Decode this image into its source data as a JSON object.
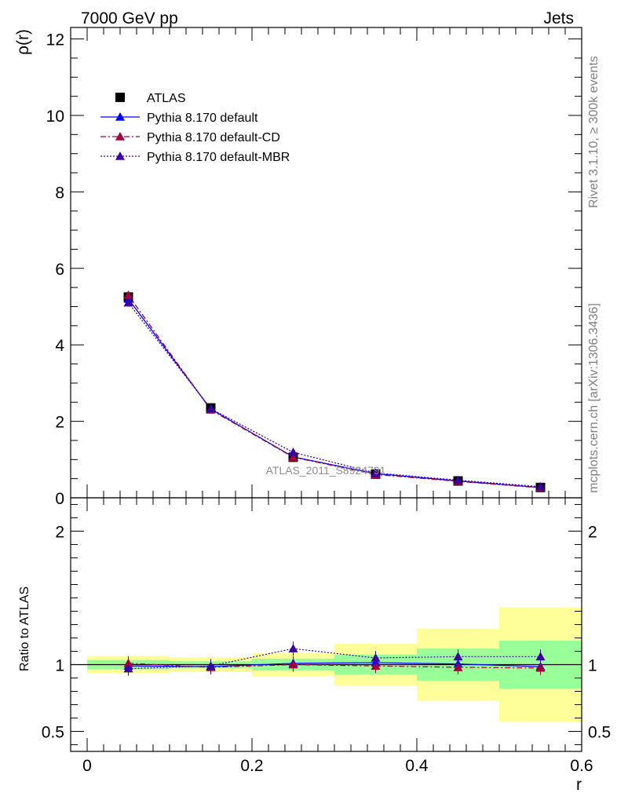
{
  "header": {
    "left": "7000 GeV pp",
    "right": "Jets"
  },
  "side_labels": {
    "rivet": "Rivet 3.1.10, ≥ 300k events",
    "mcplots": "mcplots.cern.ch [arXiv:1306.3436]"
  },
  "watermark": "ATLAS_2011_S8924791",
  "colors": {
    "data": "#000000",
    "default": "#0000ff",
    "cd": "#a0003c",
    "mbr": "#3c00a0",
    "band_inner": "#99ff99",
    "band_outer": "#ffff99"
  },
  "chart_data": [
    {
      "type": "line",
      "ylabel": "ρ(r)",
      "xlim": [
        -0.02,
        0.6
      ],
      "ylim": [
        0,
        12.3
      ],
      "yticks": [
        0,
        2,
        4,
        6,
        8,
        10,
        12
      ],
      "x": [
        0.05,
        0.15,
        0.25,
        0.35,
        0.45,
        0.55
      ],
      "data": {
        "name": "ATLAS",
        "values": [
          5.25,
          2.35,
          1.06,
          0.62,
          0.44,
          0.27
        ]
      },
      "series": [
        {
          "name": "Pythia 8.170 default",
          "values": [
            5.2,
            2.32,
            1.07,
            0.63,
            0.44,
            0.27
          ]
        },
        {
          "name": "Pythia 8.170 default-CD",
          "values": [
            5.3,
            2.3,
            1.06,
            0.61,
            0.43,
            0.26
          ]
        },
        {
          "name": "Pythia 8.170 default-MBR",
          "values": [
            5.1,
            2.33,
            1.19,
            0.65,
            0.46,
            0.29
          ]
        }
      ],
      "legend": "top-left"
    },
    {
      "type": "line",
      "ylabel": "Ratio to ATLAS",
      "xlabel": "r",
      "xlim": [
        -0.02,
        0.6
      ],
      "ylim": [
        0.35,
        2.25
      ],
      "yticks": [
        0.5,
        1,
        2
      ],
      "xticks": [
        0,
        0.2,
        0.4,
        0.6
      ],
      "bins": [
        [
          0.0,
          0.1
        ],
        [
          0.1,
          0.2
        ],
        [
          0.2,
          0.3
        ],
        [
          0.3,
          0.4
        ],
        [
          0.4,
          0.5
        ],
        [
          0.5,
          0.6
        ]
      ],
      "band_inner": [
        [
          0.965,
          1.035
        ],
        [
          0.975,
          1.025
        ],
        [
          0.955,
          1.045
        ],
        [
          0.925,
          1.075
        ],
        [
          0.88,
          1.12
        ],
        [
          0.82,
          1.18
        ]
      ],
      "band_outer": [
        [
          0.935,
          1.065
        ],
        [
          0.945,
          1.055
        ],
        [
          0.915,
          1.085
        ],
        [
          0.845,
          1.155
        ],
        [
          0.73,
          1.27
        ],
        [
          0.57,
          1.43
        ]
      ],
      "x": [
        0.05,
        0.15,
        0.25,
        0.35,
        0.45,
        0.55
      ],
      "series": [
        {
          "name": "Pythia 8.170 default",
          "values": [
            0.99,
            0.985,
            1.01,
            1.015,
            1.005,
            0.985
          ]
        },
        {
          "name": "Pythia 8.170 default-CD",
          "values": [
            1.01,
            0.98,
            1.0,
            0.99,
            0.98,
            0.975
          ]
        },
        {
          "name": "Pythia 8.170 default-MBR",
          "values": [
            0.97,
            0.99,
            1.12,
            1.05,
            1.06,
            1.06
          ]
        }
      ]
    }
  ]
}
